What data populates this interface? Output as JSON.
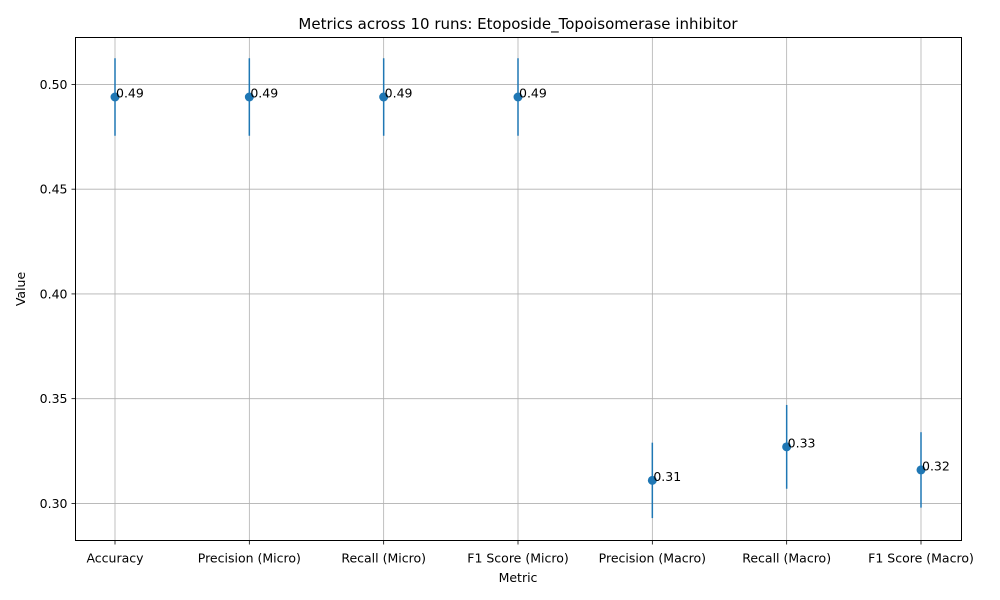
{
  "chart_data": {
    "type": "scatter",
    "title": "Metrics across 10 runs: Etoposide_Topoisomerase inhibitor",
    "xlabel": "Metric",
    "ylabel": "Value",
    "categories": [
      "Accuracy",
      "Precision (Micro)",
      "Recall (Micro)",
      "F1 Score (Micro)",
      "Precision (Macro)",
      "Recall (Macro)",
      "F1 Score (Macro)"
    ],
    "values": [
      0.494,
      0.494,
      0.494,
      0.494,
      0.311,
      0.327,
      0.316
    ],
    "error": [
      0.0185,
      0.0185,
      0.0185,
      0.0185,
      0.018,
      0.02,
      0.018
    ],
    "point_labels": [
      "0.49",
      "0.49",
      "0.49",
      "0.49",
      "0.31",
      "0.33",
      "0.32"
    ],
    "ylim": [
      0.2823,
      0.5224
    ],
    "yticks": [
      0.3,
      0.35,
      0.4,
      0.45,
      0.5
    ],
    "ytick_labels": [
      "0.30",
      "0.35",
      "0.40",
      "0.45",
      "0.50"
    ],
    "grid": true,
    "color": "#1f77b4"
  }
}
